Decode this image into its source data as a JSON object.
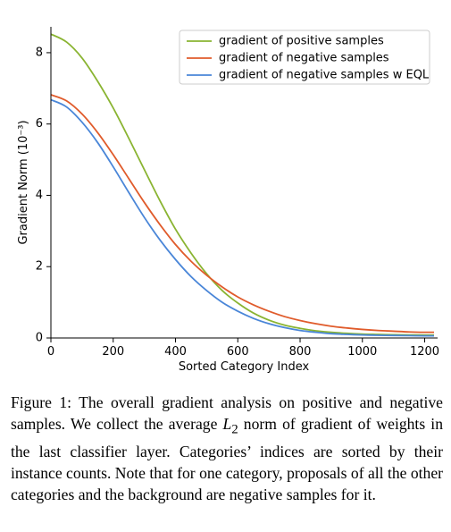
{
  "chart_data": {
    "type": "line",
    "title": "",
    "xlabel": "Sorted Category Index",
    "ylabel": "Gradient Norm (10⁻³)",
    "xlim": [
      0,
      1230
    ],
    "ylim": [
      0,
      8.6
    ],
    "x_ticks": [
      "0",
      "200",
      "400",
      "600",
      "800",
      "1000",
      "1200"
    ],
    "y_ticks": [
      "0",
      "2",
      "4",
      "6",
      "8"
    ],
    "grid": false,
    "legend_position": "top-right",
    "x": [
      0,
      50,
      100,
      150,
      200,
      250,
      300,
      350,
      400,
      450,
      500,
      550,
      600,
      650,
      700,
      750,
      800,
      850,
      900,
      950,
      1000,
      1050,
      1100,
      1150,
      1200,
      1230
    ],
    "series": [
      {
        "name": "gradient of positive samples",
        "color": "#8ab432",
        "values": [
          8.52,
          8.3,
          7.85,
          7.2,
          6.45,
          5.6,
          4.72,
          3.85,
          3.05,
          2.38,
          1.8,
          1.33,
          0.98,
          0.7,
          0.5,
          0.36,
          0.27,
          0.2,
          0.16,
          0.13,
          0.11,
          0.1,
          0.09,
          0.085,
          0.08,
          0.08
        ]
      },
      {
        "name": "gradient of negative samples",
        "color": "#e05b2b",
        "values": [
          6.82,
          6.65,
          6.28,
          5.76,
          5.14,
          4.47,
          3.8,
          3.18,
          2.62,
          2.15,
          1.76,
          1.43,
          1.15,
          0.93,
          0.75,
          0.6,
          0.49,
          0.4,
          0.33,
          0.28,
          0.24,
          0.21,
          0.19,
          0.17,
          0.16,
          0.16
        ]
      },
      {
        "name": "gradient of negative samples w EQL",
        "color": "#4a86d8",
        "values": [
          6.68,
          6.48,
          6.05,
          5.48,
          4.8,
          4.08,
          3.38,
          2.75,
          2.2,
          1.72,
          1.33,
          1.0,
          0.75,
          0.55,
          0.4,
          0.29,
          0.21,
          0.16,
          0.12,
          0.1,
          0.085,
          0.075,
          0.07,
          0.065,
          0.06,
          0.06
        ]
      }
    ]
  },
  "caption": {
    "prefix": "Figure 1: The overall gradient analysis on positive and negative samples. We collect the average ",
    "math": "L",
    "math_sub": "2",
    "suffix": " norm of gradient of weights in the last classifier layer. Categories’ indices are sorted by their instance counts. Note that for one category, proposals of all the other categories and the background are negative samples for it."
  }
}
